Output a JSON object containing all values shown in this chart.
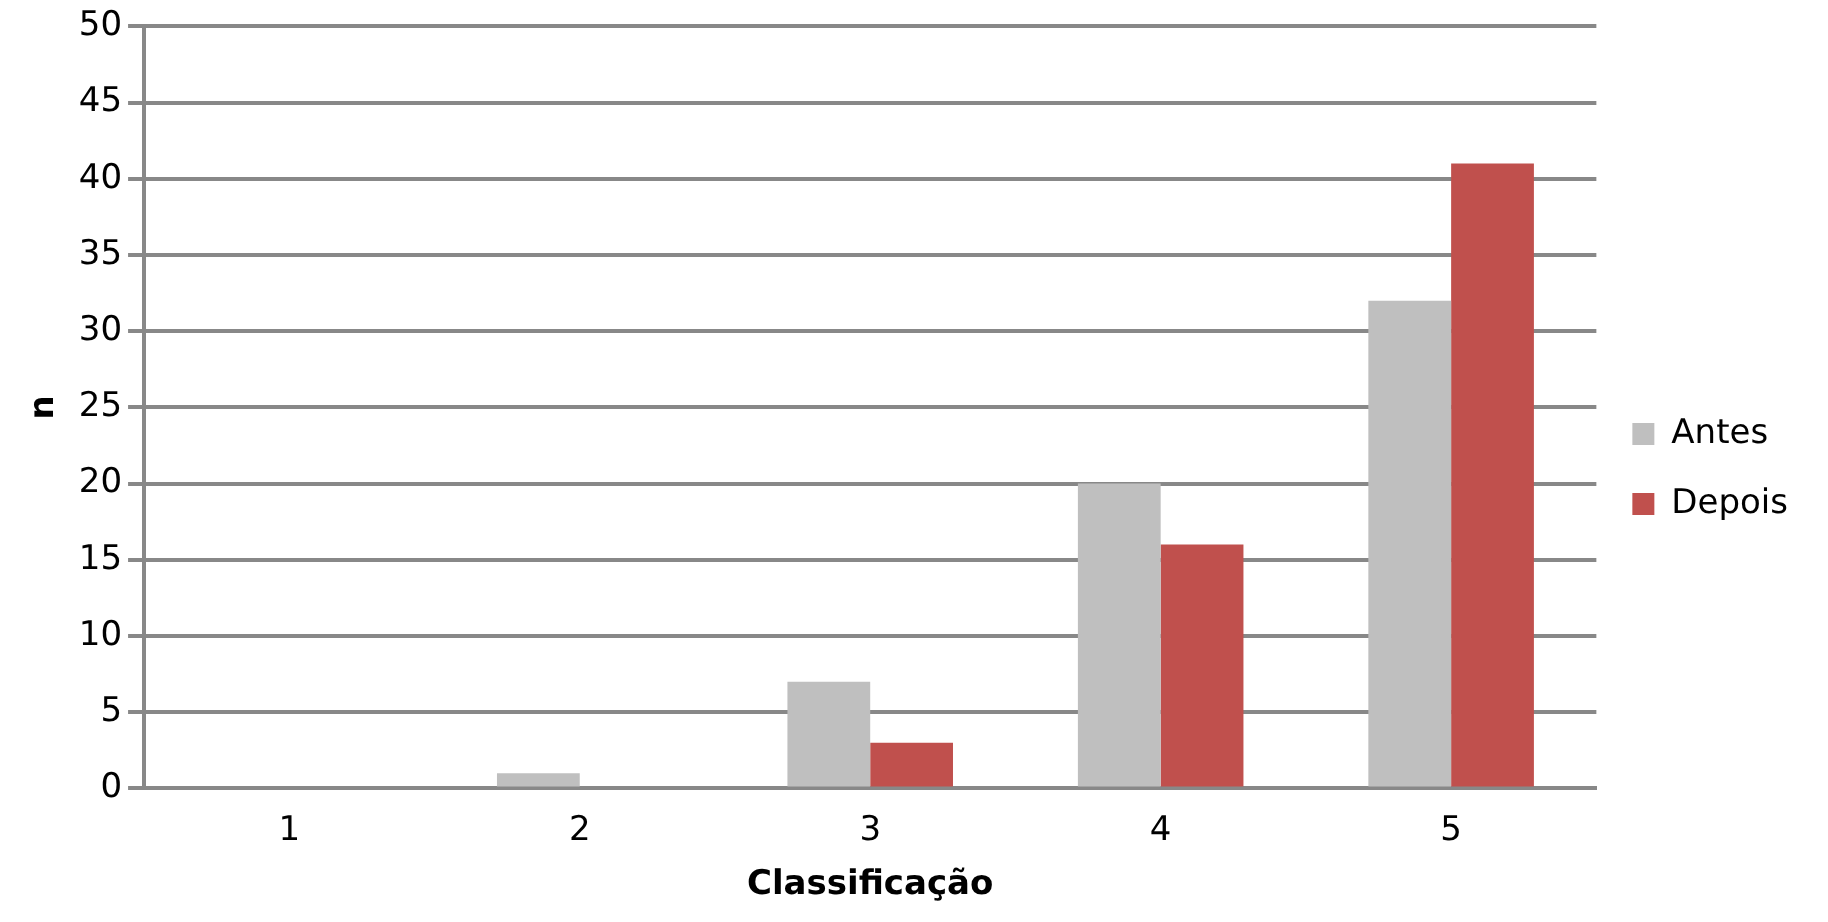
{
  "chart_data": {
    "type": "bar",
    "xlabel": "Classificação",
    "ylabel": "n",
    "categories": [
      "1",
      "2",
      "3",
      "4",
      "5"
    ],
    "series": [
      {
        "name": "Antes",
        "color": "#bfbfbf",
        "values": [
          0,
          1,
          7,
          20,
          32
        ]
      },
      {
        "name": "Depois",
        "color": "#c0504d",
        "values": [
          0,
          0,
          3,
          16,
          41
        ]
      }
    ],
    "ylim": [
      0,
      50
    ],
    "yticks": [
      0,
      5,
      10,
      15,
      20,
      25,
      30,
      35,
      40,
      45,
      50
    ],
    "grid": "y",
    "legend": "right"
  }
}
